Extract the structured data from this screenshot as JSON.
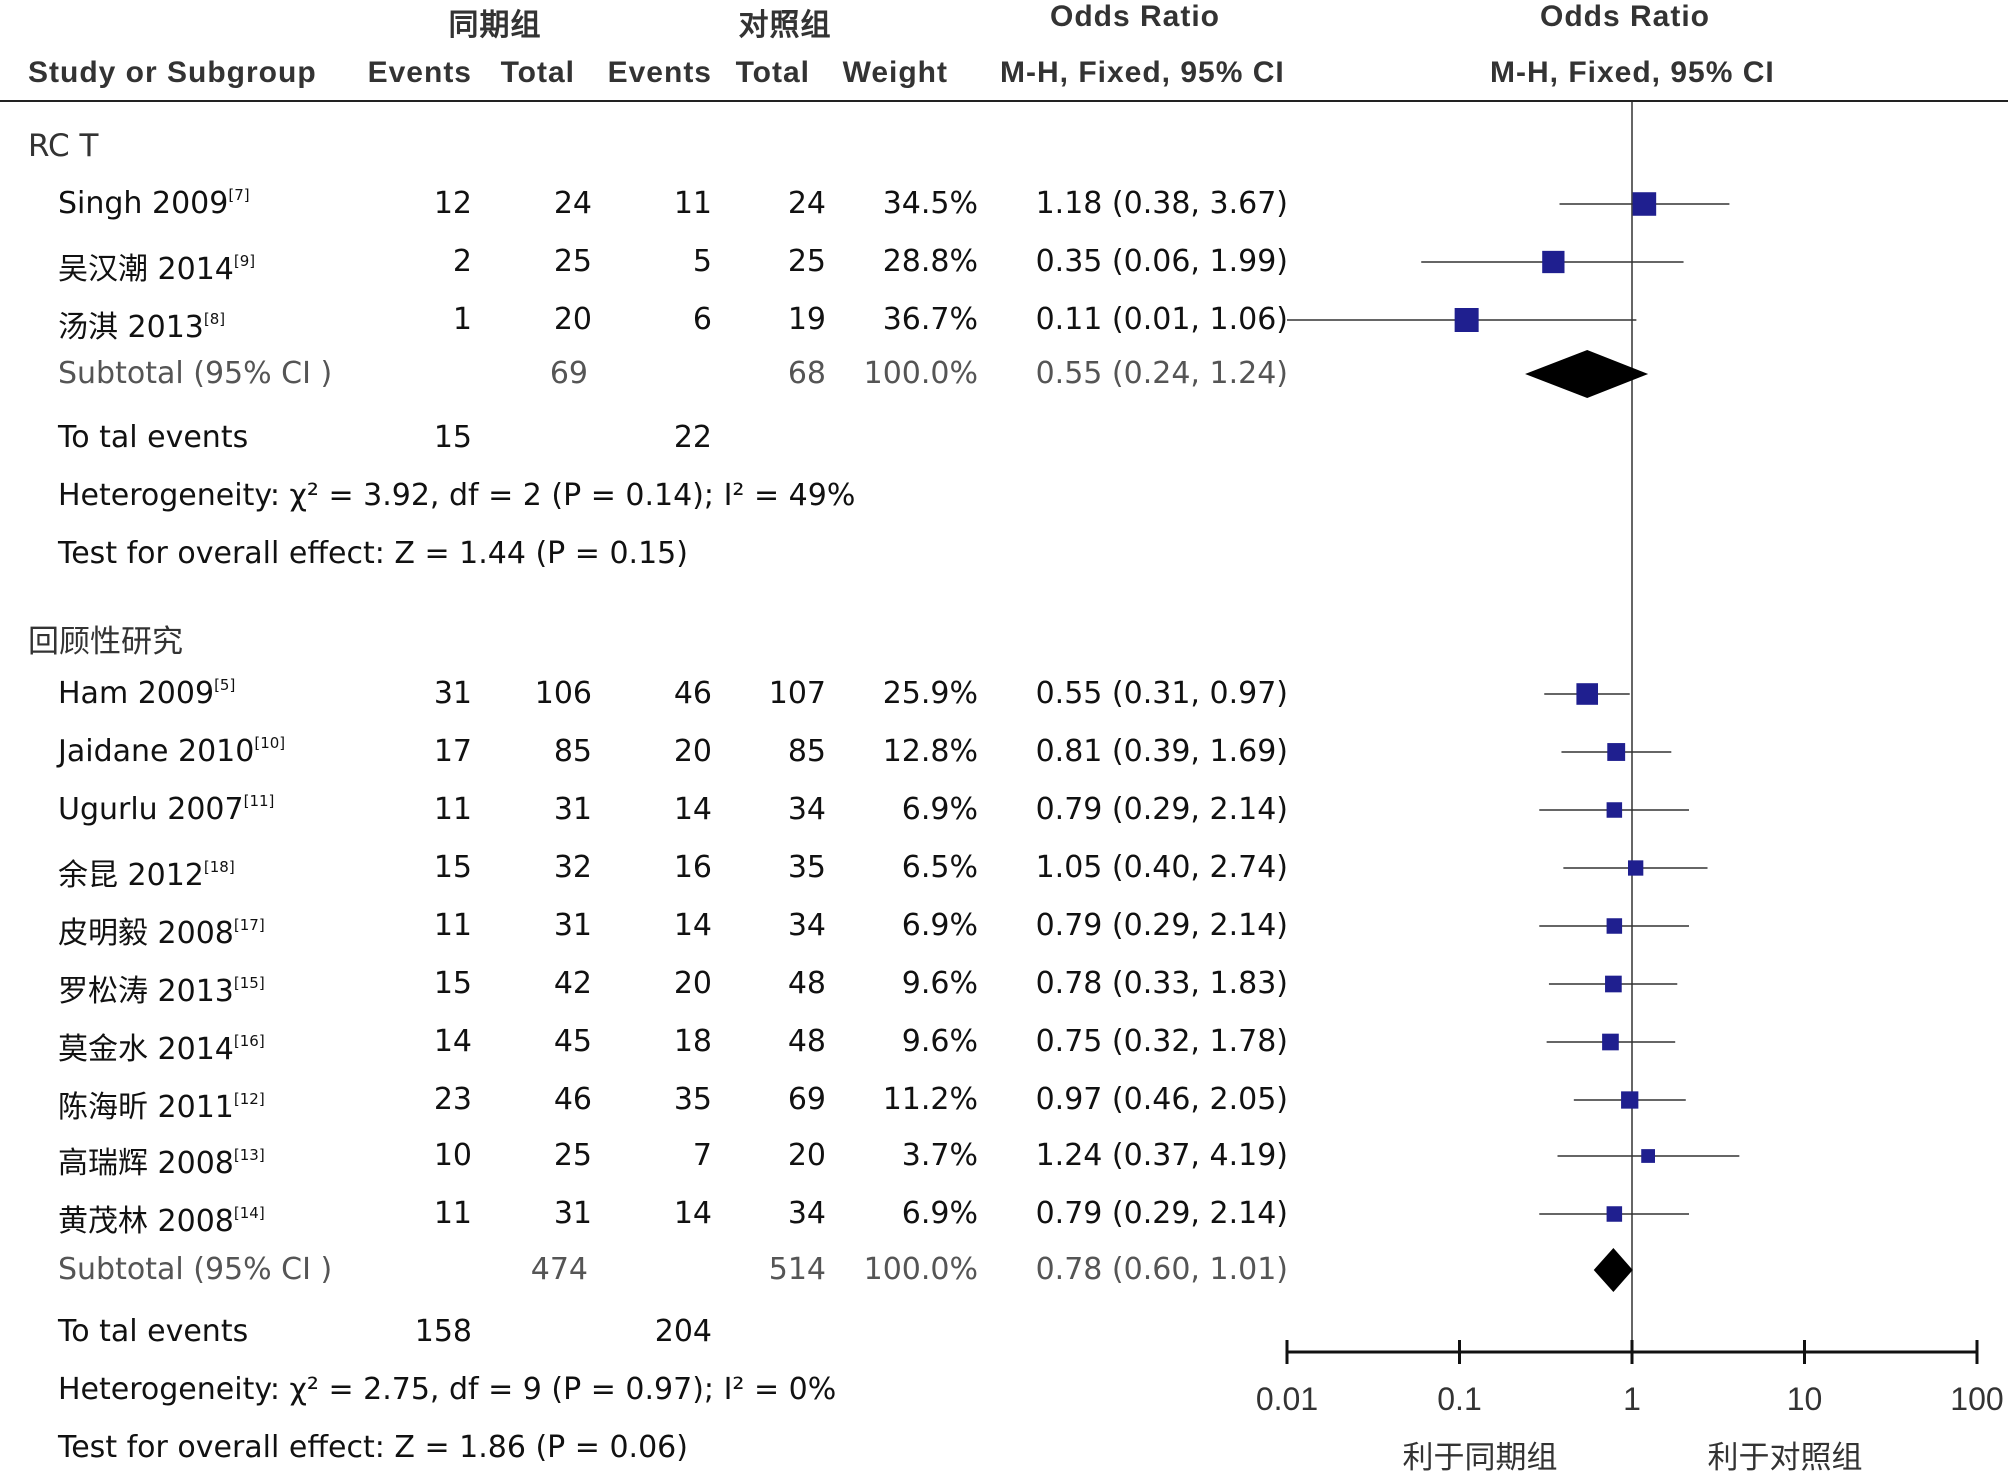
{
  "headers": {
    "group_a": "同期组",
    "group_b": "对照组",
    "or_top": "Odds Ratio",
    "plot_top": "Odds Ratio",
    "study": "Study or Subgroup",
    "events_a": "Events",
    "total_a": "Total",
    "events_b": "Events",
    "total_b": "Total",
    "weight": "Weight",
    "or_sub": "M-H, Fixed, 95% CI",
    "plot_sub": "M-H, Fixed, 95% CI"
  },
  "groups": [
    {
      "name": "RC T",
      "studies": [
        {
          "name": "Singh 2009",
          "ref": "[7]",
          "ea": "12",
          "ta": "24",
          "eb": "11",
          "tb": "24",
          "weight": "34.5%",
          "ci": "1.18 (0.38, 3.67)"
        },
        {
          "name": "吴汉潮 2014",
          "ref": "[9]",
          "ea": "2",
          "ta": "25",
          "eb": "5",
          "tb": "25",
          "weight": "28.8%",
          "ci": "0.35 (0.06, 1.99)"
        },
        {
          "name": "汤淇 2013",
          "ref": "[8]",
          "ea": "1",
          "ta": "20",
          "eb": "6",
          "tb": "19",
          "weight": "36.7%",
          "ci": "0.11 (0.01, 1.06)"
        }
      ],
      "subtotal": {
        "label": "Subtotal (95% CI )",
        "ta": "69",
        "tb": "68",
        "weight": "100.0%",
        "ci": "0.55 (0.24, 1.24)"
      },
      "total_events": {
        "label": "To tal events",
        "a": "15",
        "b": "22"
      },
      "heterogeneity": "Heterogeneity:  χ² = 3.92, df = 2 (P = 0.14);  I² = 49%",
      "overall": "Test for overall effect: Z = 1.44 (P = 0.15)"
    },
    {
      "name": "回顾性研究",
      "studies": [
        {
          "name": "Ham 2009",
          "ref": "[5]",
          "ea": "31",
          "ta": "106",
          "eb": "46",
          "tb": "107",
          "weight": "25.9%",
          "ci": "0.55 (0.31, 0.97)"
        },
        {
          "name": "Jaidane 2010",
          "ref": "[10]",
          "ea": "17",
          "ta": "85",
          "eb": "20",
          "tb": "85",
          "weight": "12.8%",
          "ci": "0.81 (0.39, 1.69)"
        },
        {
          "name": "Ugurlu 2007",
          "ref": "[11]",
          "ea": "11",
          "ta": "31",
          "eb": "14",
          "tb": "34",
          "weight": "6.9%",
          "ci": "0.79 (0.29, 2.14)"
        },
        {
          "name": "余昆 2012",
          "ref": "[18]",
          "ea": "15",
          "ta": "32",
          "eb": "16",
          "tb": "35",
          "weight": "6.5%",
          "ci": "1.05 (0.40, 2.74)"
        },
        {
          "name": "皮明毅 2008",
          "ref": "[17]",
          "ea": "11",
          "ta": "31",
          "eb": "14",
          "tb": "34",
          "weight": "6.9%",
          "ci": "0.79 (0.29, 2.14)"
        },
        {
          "name": "罗松涛 2013",
          "ref": "[15]",
          "ea": "15",
          "ta": "42",
          "eb": "20",
          "tb": "48",
          "weight": "9.6%",
          "ci": "0.78 (0.33, 1.83)"
        },
        {
          "name": "莫金水 2014",
          "ref": "[16]",
          "ea": "14",
          "ta": "45",
          "eb": "18",
          "tb": "48",
          "weight": "9.6%",
          "ci": "0.75 (0.32, 1.78)"
        },
        {
          "name": "陈海昕 2011",
          "ref": "[12]",
          "ea": "23",
          "ta": "46",
          "eb": "35",
          "tb": "69",
          "weight": "11.2%",
          "ci": "0.97 (0.46, 2.05)"
        },
        {
          "name": "高瑞辉 2008",
          "ref": "[13]",
          "ea": "10",
          "ta": "25",
          "eb": "7",
          "tb": "20",
          "weight": "3.7%",
          "ci": "1.24 (0.37, 4.19)"
        },
        {
          "name": "黄茂林 2008",
          "ref": "[14]",
          "ea": "11",
          "ta": "31",
          "eb": "14",
          "tb": "34",
          "weight": "6.9%",
          "ci": "0.79 (0.29, 2.14)"
        }
      ],
      "subtotal": {
        "label": "Subtotal (95% CI )",
        "ta": "474",
        "tb": "514",
        "weight": "100.0%",
        "ci": "0.78 (0.60, 1.01)"
      },
      "total_events": {
        "label": "To tal events",
        "a": "158",
        "b": "204"
      },
      "heterogeneity": "Heterogeneity:  χ² = 2.75, df = 9 (P = 0.97);  I² = 0%",
      "overall": "Test for overall effect: Z = 1.86 (P = 0.06)"
    }
  ],
  "axis": {
    "ticks": [
      "0.01",
      "0.1",
      "1",
      "10",
      "100"
    ],
    "favours_left": "利于同期组",
    "favours_right": "利于对照组"
  },
  "colors": {
    "square": "#1f1f8f",
    "diamond": "#000000",
    "line": "#333333"
  },
  "chart_data": {
    "type": "forest",
    "scale": "log",
    "xlim": [
      0.01,
      100
    ],
    "reference_line": 1,
    "series": [
      {
        "group": "RC T",
        "or": [
          1.18,
          0.35,
          0.11
        ],
        "lower": [
          0.38,
          0.06,
          0.01
        ],
        "upper": [
          3.67,
          1.99,
          1.06
        ],
        "weight": [
          34.5,
          28.8,
          36.7
        ],
        "subtotal": {
          "or": 0.55,
          "lower": 0.24,
          "upper": 1.24
        }
      },
      {
        "group": "回顾性研究",
        "or": [
          0.55,
          0.81,
          0.79,
          1.05,
          0.79,
          0.78,
          0.75,
          0.97,
          1.24,
          0.79
        ],
        "lower": [
          0.31,
          0.39,
          0.29,
          0.4,
          0.29,
          0.33,
          0.32,
          0.46,
          0.37,
          0.29
        ],
        "upper": [
          0.97,
          1.69,
          2.14,
          2.74,
          2.14,
          1.83,
          1.78,
          2.05,
          4.19,
          2.14
        ],
        "weight": [
          25.9,
          12.8,
          6.9,
          6.5,
          6.9,
          9.6,
          9.6,
          11.2,
          3.7,
          6.9
        ],
        "subtotal": {
          "or": 0.78,
          "lower": 0.6,
          "upper": 1.01
        }
      }
    ]
  }
}
